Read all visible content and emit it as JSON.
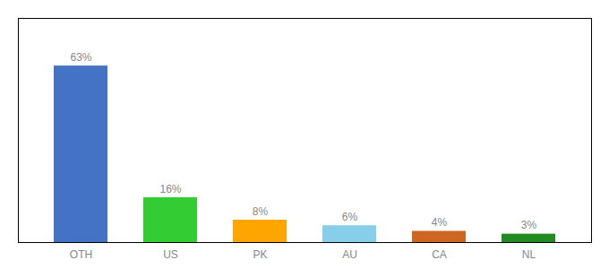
{
  "chart_data": {
    "type": "bar",
    "categories": [
      "OTH",
      "US",
      "PK",
      "AU",
      "CA",
      "NL"
    ],
    "values": [
      63,
      16,
      8,
      6,
      4,
      3
    ],
    "value_labels": [
      "63%",
      "16%",
      "8%",
      "6%",
      "4%",
      "3%"
    ],
    "colors": [
      "#4472C4",
      "#33CC33",
      "#FFA500",
      "#87CEEB",
      "#CD6620",
      "#228B22"
    ],
    "ylim": [
      0,
      80
    ],
    "data_labels": true,
    "tick_labels": "x",
    "grid": false
  }
}
